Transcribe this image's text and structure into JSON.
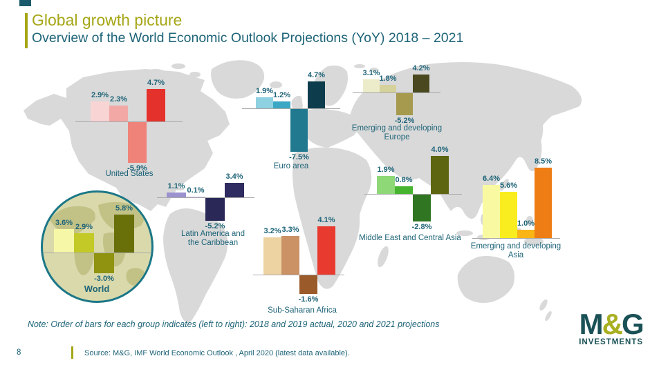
{
  "slide": {
    "title": "Global growth picture",
    "subtitle": "Overview of the World Economic Outlook Projections (YoY) 2018 – 2021",
    "note": "Note: Order of bars for each group indicates (left to right): 2018 and 2019 actual, 2020 and 2021 projections",
    "page_number": "8",
    "source": "Source: M&G, IMF World Economic Outlook , April 2020 (latest data available)."
  },
  "logo": {
    "m": "M",
    "amp": "&",
    "g": "G",
    "investments": "INVESTMENTS"
  },
  "colors": {
    "accent_olive": "#a5a616",
    "text_teal": "#1e6478",
    "map_gray": "#d9d9d9",
    "baseline_gray": "#a9a9a9",
    "world_circle_bg": "#d9d9ab",
    "world_circle_land": "#c2c287",
    "world_circle_ring": "#1b7787"
  },
  "chart_data": [
    {
      "id": "united-states",
      "type": "bar",
      "region": "United States",
      "region_lines": [
        "United States"
      ],
      "categories": [
        "2018",
        "2019",
        "2020",
        "2021"
      ],
      "values": [
        2.9,
        2.3,
        -5.9,
        4.7
      ],
      "labels": [
        "2.9%",
        "2.3%",
        "-5.9%",
        "4.7%"
      ],
      "colors": [
        "#f9d4d4",
        "#f2a8a5",
        "#ef837a",
        "#e5312b"
      ]
    },
    {
      "id": "euro-area",
      "type": "bar",
      "region": "Euro area",
      "region_lines": [
        "Euro area"
      ],
      "categories": [
        "2018",
        "2019",
        "2020",
        "2021"
      ],
      "values": [
        1.9,
        1.2,
        -7.5,
        4.7
      ],
      "labels": [
        "1.9%",
        "1.2%",
        "-7.5%",
        "4.7%"
      ],
      "colors": [
        "#8ed1e1",
        "#3aa8c4",
        "#20798f",
        "#0d3d4d"
      ]
    },
    {
      "id": "emerging-developing-europe",
      "type": "bar",
      "region": "Emerging and developing Europe",
      "region_lines": [
        "Emerging and developing",
        "Europe"
      ],
      "categories": [
        "2018",
        "2019",
        "2020",
        "2021"
      ],
      "values": [
        3.1,
        1.8,
        -5.2,
        4.2
      ],
      "labels": [
        "3.1%",
        "1.8%",
        "-5.2%",
        "4.2%"
      ],
      "colors": [
        "#ececcb",
        "#d6d29b",
        "#a59a4e",
        "#49481e"
      ]
    },
    {
      "id": "latin-america-caribbean",
      "type": "bar",
      "region": "Latin America and the Caribbean",
      "region_lines": [
        "Latin America and",
        "the Caribbean"
      ],
      "categories": [
        "2018",
        "2019",
        "2020",
        "2021"
      ],
      "values": [
        1.1,
        0.1,
        -5.2,
        3.4
      ],
      "labels": [
        "1.1%",
        "0.1%",
        "-5.2%",
        "3.4%"
      ],
      "colors": [
        "#9a92cf",
        "#c7c4e6",
        "#2a2857",
        "#2e2c60"
      ]
    },
    {
      "id": "sub-saharan-africa",
      "type": "bar",
      "region": "Sub-Saharan Africa",
      "region_lines": [
        "Sub-Saharan Africa"
      ],
      "categories": [
        "2018",
        "2019",
        "2020",
        "2021"
      ],
      "values": [
        3.2,
        3.3,
        -1.6,
        4.1
      ],
      "labels": [
        "3.2%",
        "3.3%",
        "-1.6%",
        "4.1%"
      ],
      "colors": [
        "#edd2a2",
        "#cb9266",
        "#9a5a2a",
        "#e93a30"
      ]
    },
    {
      "id": "middle-east-central-asia",
      "type": "bar",
      "region": "Middle East and Central Asia",
      "region_lines": [
        "Middle East and Central Asia"
      ],
      "categories": [
        "2018",
        "2019",
        "2020",
        "2021"
      ],
      "values": [
        1.9,
        0.8,
        -2.8,
        4.0
      ],
      "labels": [
        "1.9%",
        "0.8%",
        "-2.8%",
        "4.0%"
      ],
      "colors": [
        "#8ed878",
        "#46b42e",
        "#2f7522",
        "#5d6510"
      ]
    },
    {
      "id": "emerging-developing-asia",
      "type": "bar",
      "region": "Emerging and developing Asia",
      "region_lines": [
        "Emerging and developing",
        "Asia"
      ],
      "categories": [
        "2018",
        "2019",
        "2020",
        "2021"
      ],
      "values": [
        6.4,
        5.6,
        1.0,
        8.5
      ],
      "labels": [
        "6.4%",
        "5.6%",
        "1.0%",
        "8.5%"
      ],
      "colors": [
        "#f9f9a2",
        "#f9ed1f",
        "#f9b515",
        "#ef7d15"
      ]
    },
    {
      "id": "world",
      "type": "bar",
      "region": "World",
      "region_lines": [
        "World"
      ],
      "categories": [
        "2018",
        "2019",
        "2020",
        "2021"
      ],
      "values": [
        3.6,
        2.9,
        -3.0,
        5.8
      ],
      "labels": [
        "3.6%",
        "2.9%",
        "-3.0%",
        "5.8%"
      ],
      "colors": [
        "#f7f7a8",
        "#c3ca28",
        "#8f9310",
        "#69700a"
      ]
    }
  ]
}
